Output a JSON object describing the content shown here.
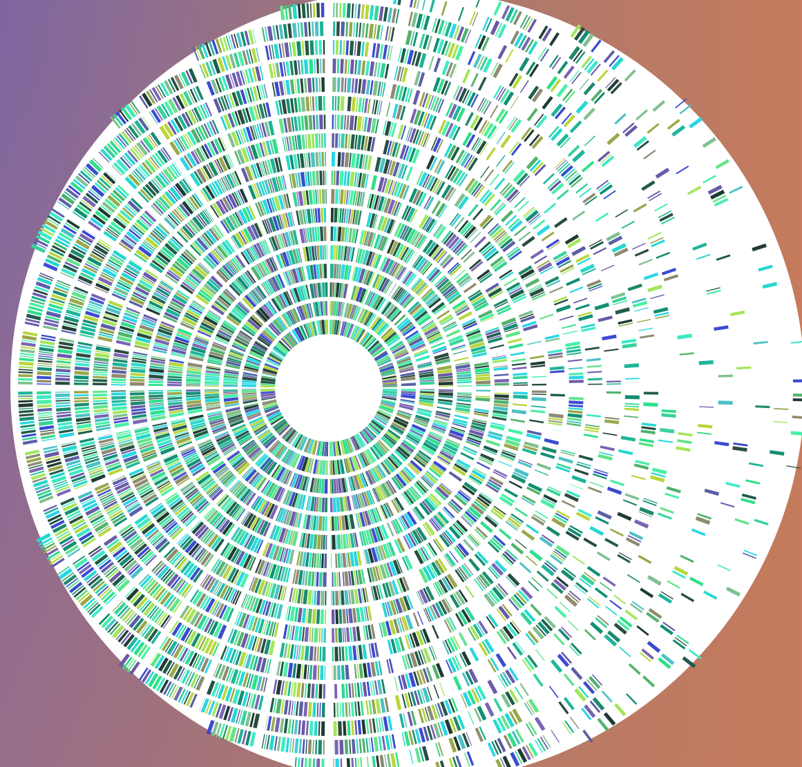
{
  "artwork": {
    "kind": "radial-segmented-mosaic",
    "shape": "disc",
    "rings": 24,
    "spokes": 32
  },
  "colors": {
    "background_left": "#7f66a2",
    "background_right": "#c57b5c",
    "disc": "#ffffff",
    "palette": [
      "#2fe08a",
      "#3ee9c7",
      "#1b8a6b",
      "#215c4a",
      "#1f3b33",
      "#37d39b",
      "#5a5fa8",
      "#7b64b4",
      "#b8d63c",
      "#9aa84a",
      "#25d8d0",
      "#4cc2c7",
      "#3b4bd0",
      "#7fc08f",
      "#62e48a",
      "#128f74",
      "#52b36c",
      "#2bd6e6",
      "#8f8a70",
      "#294d3f",
      "#a4e65a",
      "#6b59a8",
      "#1fb59a",
      "#48f0a8"
    ]
  }
}
